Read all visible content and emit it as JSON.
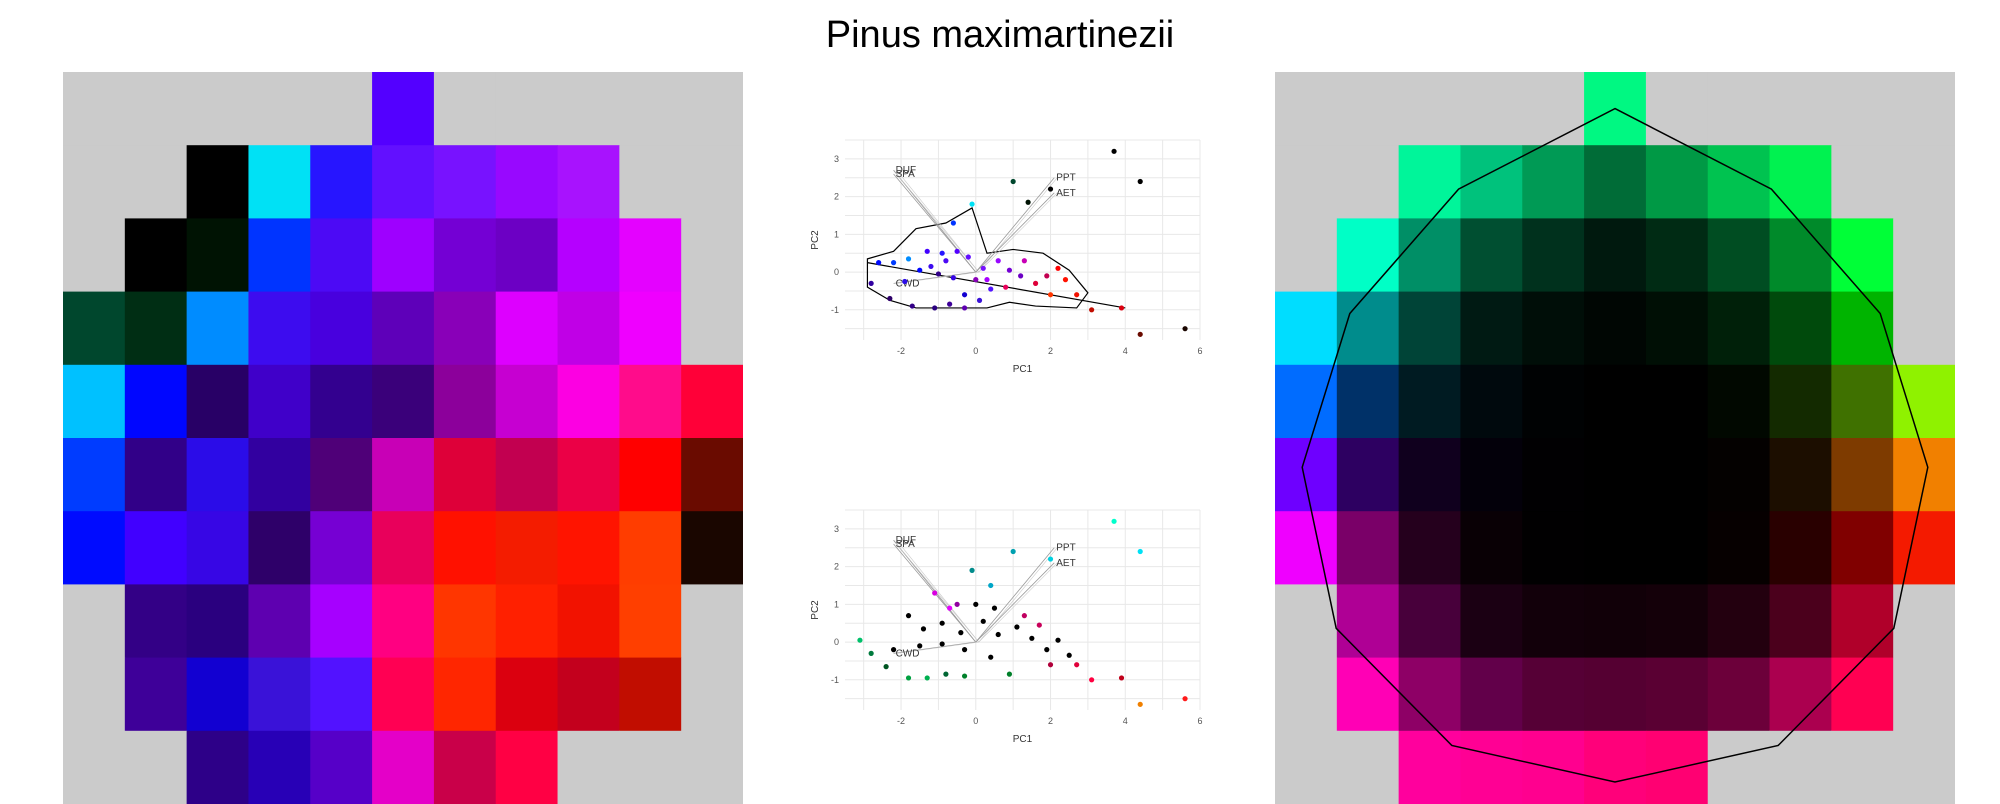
{
  "title": "Pinus maximartinezii",
  "colors": {
    "missing": "#cbcbcb",
    "grid": "#e8e8e8",
    "outline": "#000000"
  },
  "chart_data": [
    {
      "type": "heatmap",
      "panel": "left",
      "rows": [
        [
          null,
          null,
          null,
          null,
          null,
          "#5300ff",
          null,
          null,
          null,
          null,
          null
        ],
        [
          null,
          null,
          "#000000",
          "#00e1f5",
          "#2715ff",
          "#6210ff",
          "#7812ff",
          "#9808ff",
          "#a812fe",
          null,
          null
        ],
        [
          null,
          "#000000",
          "#001303",
          "#0034ff",
          "#4c0af5",
          "#9e00ff",
          "#7400d4",
          "#6c00c4",
          "#b500ff",
          "#e402ff",
          null
        ],
        [
          "#00472d",
          "#002e14",
          "#008cff",
          "#3d0cef",
          "#4800de",
          "#5e00b9",
          "#8900b8",
          "#dd00ff",
          "#c000e6",
          "#ef00ff",
          null
        ],
        [
          "#00c1ff",
          "#0006ff",
          "#280066",
          "#4000c9",
          "#33008f",
          "#3a007a",
          "#8c009b",
          "#c600d1",
          "#fc00e2",
          "#ff0c8b",
          "#ff0038"
        ],
        [
          "#003cff",
          "#310088",
          "#2b0ce8",
          "#3200a0",
          "#4f0078",
          "#c800b6",
          "#de0039",
          "#c20050",
          "#eb0046",
          "#ff0000",
          "#6a0b00"
        ],
        [
          "#000bff",
          "#4100ff",
          "#3706e5",
          "#2e0069",
          "#7600d3",
          "#e8005b",
          "#ff1100",
          "#f41c00",
          "#ff1400",
          "#ff3d00",
          "#1a0600"
        ],
        [
          null,
          "#330086",
          "#2a007f",
          "#5e00b0",
          "#a600ff",
          "#ff0081",
          "#ff3600",
          "#ff2000",
          "#f21200",
          "#ff3f00",
          null
        ],
        [
          null,
          "#3e0099",
          "#1200d1",
          "#3a12d8",
          "#5212ff",
          "#ff0053",
          "#ff2600",
          "#db000f",
          "#c3001d",
          "#c10d00",
          null
        ],
        [
          null,
          null,
          "#2d0088",
          "#2800b6",
          "#5600c8",
          "#e400c8",
          "#c90049",
          "#ff0044",
          null,
          null,
          null
        ]
      ]
    },
    {
      "type": "scatter",
      "panel": "center-top",
      "xlabel": "PC1",
      "ylabel": "PC2",
      "x_ticks": [
        -2,
        0,
        2,
        4,
        6
      ],
      "y_ticks": [
        -1,
        0,
        1,
        2,
        3
      ],
      "xlim": [
        -3.5,
        6
      ],
      "ylim": [
        -1.8,
        3.5
      ],
      "arrows": [
        {
          "label": "DUF",
          "x": -2.2,
          "y": 2.7
        },
        {
          "label": "SPA",
          "x": -2.2,
          "y": 2.6
        },
        {
          "label": "PPT",
          "x": 2.1,
          "y": 2.5
        },
        {
          "label": "AET",
          "x": 2.1,
          "y": 2.1
        },
        {
          "label": "CWD",
          "x": -2.2,
          "y": -0.3
        }
      ],
      "points": [
        {
          "x": 3.7,
          "y": 3.2,
          "c": "#000000"
        },
        {
          "x": 4.4,
          "y": 2.4,
          "c": "#000000"
        },
        {
          "x": 1.0,
          "y": 2.4,
          "c": "#00472d"
        },
        {
          "x": 2.0,
          "y": 2.2,
          "c": "#000000"
        },
        {
          "x": 1.4,
          "y": 1.85,
          "c": "#001303"
        },
        {
          "x": -0.1,
          "y": 1.8,
          "c": "#00e1f5"
        },
        {
          "x": -0.6,
          "y": 1.3,
          "c": "#0034ff"
        },
        {
          "x": -0.9,
          "y": 0.5,
          "c": "#2715ff"
        },
        {
          "x": -2.6,
          "y": 0.25,
          "c": "#000bff"
        },
        {
          "x": -2.2,
          "y": 0.25,
          "c": "#003cff"
        },
        {
          "x": -1.8,
          "y": 0.35,
          "c": "#008cff"
        },
        {
          "x": -1.5,
          "y": 0.05,
          "c": "#0006ff"
        },
        {
          "x": -1.2,
          "y": 0.15,
          "c": "#3d0cef"
        },
        {
          "x": -0.8,
          "y": 0.3,
          "c": "#4c0af5"
        },
        {
          "x": -0.5,
          "y": 0.55,
          "c": "#5300ff"
        },
        {
          "x": -0.2,
          "y": 0.4,
          "c": "#6210ff"
        },
        {
          "x": -1.3,
          "y": 0.55,
          "c": "#4100ff"
        },
        {
          "x": -1.0,
          "y": -0.05,
          "c": "#310088"
        },
        {
          "x": -0.6,
          "y": -0.15,
          "c": "#3706e5"
        },
        {
          "x": -1.9,
          "y": -0.25,
          "c": "#2b0ce8"
        },
        {
          "x": -2.8,
          "y": -0.3,
          "c": "#3200a0"
        },
        {
          "x": -2.3,
          "y": -0.7,
          "c": "#2e0069"
        },
        {
          "x": -1.7,
          "y": -0.9,
          "c": "#330086"
        },
        {
          "x": -1.1,
          "y": -0.95,
          "c": "#2a007f"
        },
        {
          "x": -0.7,
          "y": -0.85,
          "c": "#3e0099"
        },
        {
          "x": -0.3,
          "y": -0.6,
          "c": "#1200d1"
        },
        {
          "x": 0.1,
          "y": -0.75,
          "c": "#3a12d8"
        },
        {
          "x": 0.4,
          "y": -0.45,
          "c": "#5212ff"
        },
        {
          "x": 0.2,
          "y": 0.1,
          "c": "#7812ff"
        },
        {
          "x": 0.6,
          "y": 0.3,
          "c": "#9808ff"
        },
        {
          "x": 0.9,
          "y": 0.05,
          "c": "#7400d4"
        },
        {
          "x": 1.2,
          "y": -0.1,
          "c": "#6c00c4"
        },
        {
          "x": 0.0,
          "y": -0.2,
          "c": "#8900b8"
        },
        {
          "x": -0.3,
          "y": -0.95,
          "c": "#5e00b0"
        },
        {
          "x": 0.3,
          "y": -0.2,
          "c": "#a600ff"
        },
        {
          "x": 0.8,
          "y": -0.4,
          "c": "#e8005b"
        },
        {
          "x": 1.3,
          "y": 0.3,
          "c": "#c800b6"
        },
        {
          "x": 1.6,
          "y": -0.3,
          "c": "#de0039"
        },
        {
          "x": 1.9,
          "y": -0.1,
          "c": "#c20050"
        },
        {
          "x": 2.2,
          "y": 0.1,
          "c": "#ff0000"
        },
        {
          "x": 2.4,
          "y": -0.2,
          "c": "#ff1100"
        },
        {
          "x": 2.0,
          "y": -0.6,
          "c": "#ff3600"
        },
        {
          "x": 2.7,
          "y": -0.6,
          "c": "#f21200"
        },
        {
          "x": 3.1,
          "y": -1.0,
          "c": "#c10d00"
        },
        {
          "x": 3.9,
          "y": -0.95,
          "c": "#db000f"
        },
        {
          "x": 4.4,
          "y": -1.65,
          "c": "#6a0b00"
        },
        {
          "x": 5.6,
          "y": -1.5,
          "c": "#1a0600"
        }
      ],
      "hull": [
        [
          -2.9,
          0.35
        ],
        [
          -2.2,
          0.55
        ],
        [
          -1.6,
          1.15
        ],
        [
          -0.8,
          1.3
        ],
        [
          -0.1,
          1.7
        ],
        [
          0.3,
          0.5
        ],
        [
          1.0,
          0.6
        ],
        [
          1.8,
          0.5
        ],
        [
          2.5,
          0.05
        ],
        [
          3.0,
          -0.55
        ],
        [
          2.7,
          -0.95
        ],
        [
          1.6,
          -0.9
        ],
        [
          0.9,
          -0.8
        ],
        [
          0.3,
          -0.95
        ],
        [
          -0.7,
          -0.95
        ],
        [
          -1.6,
          -0.95
        ],
        [
          -2.3,
          -0.75
        ],
        [
          -2.9,
          -0.4
        ]
      ],
      "trend_line": [
        [
          -2.9,
          0.25
        ],
        [
          4.0,
          -0.95
        ]
      ]
    },
    {
      "type": "scatter",
      "panel": "center-bottom",
      "xlabel": "PC1",
      "ylabel": "PC2",
      "x_ticks": [
        -2,
        0,
        2,
        4,
        6
      ],
      "y_ticks": [
        -1,
        0,
        1,
        2,
        3
      ],
      "xlim": [
        -3.5,
        6
      ],
      "ylim": [
        -1.8,
        3.5
      ],
      "arrows": [
        {
          "label": "DUF",
          "x": -2.2,
          "y": 2.7
        },
        {
          "label": "SPA",
          "x": -2.2,
          "y": 2.6
        },
        {
          "label": "PPT",
          "x": 2.1,
          "y": 2.5
        },
        {
          "label": "AET",
          "x": 2.1,
          "y": 2.1
        },
        {
          "label": "CWD",
          "x": -2.2,
          "y": -0.3
        }
      ],
      "points": [
        {
          "x": 3.7,
          "y": 3.2,
          "c": "#00ffcc"
        },
        {
          "x": 4.4,
          "y": 2.4,
          "c": "#00e1f5"
        },
        {
          "x": 1.0,
          "y": 2.4,
          "c": "#00a0b0"
        },
        {
          "x": 2.0,
          "y": 2.2,
          "c": "#00d0e0"
        },
        {
          "x": -0.1,
          "y": 1.9,
          "c": "#008b8b"
        },
        {
          "x": 0.4,
          "y": 1.5,
          "c": "#00a6c8"
        },
        {
          "x": -1.1,
          "y": 1.3,
          "c": "#d800e0"
        },
        {
          "x": -0.7,
          "y": 0.9,
          "c": "#e402ff"
        },
        {
          "x": -1.8,
          "y": 0.7,
          "c": "#000000"
        },
        {
          "x": -1.4,
          "y": 0.35,
          "c": "#000000"
        },
        {
          "x": -0.9,
          "y": 0.5,
          "c": "#000000"
        },
        {
          "x": -0.4,
          "y": 0.25,
          "c": "#000000"
        },
        {
          "x": 0.2,
          "y": 0.55,
          "c": "#000000"
        },
        {
          "x": 0.6,
          "y": 0.2,
          "c": "#000000"
        },
        {
          "x": 1.1,
          "y": 0.4,
          "c": "#000000"
        },
        {
          "x": 1.5,
          "y": 0.1,
          "c": "#000000"
        },
        {
          "x": 1.9,
          "y": -0.2,
          "c": "#000000"
        },
        {
          "x": 2.2,
          "y": 0.05,
          "c": "#000000"
        },
        {
          "x": 2.5,
          "y": -0.35,
          "c": "#000000"
        },
        {
          "x": -2.2,
          "y": -0.2,
          "c": "#000000"
        },
        {
          "x": -1.5,
          "y": -0.1,
          "c": "#000000"
        },
        {
          "x": -0.9,
          "y": -0.05,
          "c": "#000000"
        },
        {
          "x": -0.3,
          "y": -0.2,
          "c": "#000000"
        },
        {
          "x": 0.4,
          "y": -0.4,
          "c": "#000000"
        },
        {
          "x": -2.8,
          "y": -0.3,
          "c": "#007a3d"
        },
        {
          "x": -3.1,
          "y": 0.05,
          "c": "#00c06a"
        },
        {
          "x": -2.4,
          "y": -0.65,
          "c": "#005522"
        },
        {
          "x": -1.8,
          "y": -0.95,
          "c": "#00a040"
        },
        {
          "x": -1.3,
          "y": -0.95,
          "c": "#00b050"
        },
        {
          "x": -0.8,
          "y": -0.85,
          "c": "#006633"
        },
        {
          "x": -0.3,
          "y": -0.9,
          "c": "#00802a"
        },
        {
          "x": 0.9,
          "y": -0.85,
          "c": "#00802a"
        },
        {
          "x": 1.3,
          "y": 0.7,
          "c": "#c00060"
        },
        {
          "x": 1.7,
          "y": 0.45,
          "c": "#c8005a"
        },
        {
          "x": 2.0,
          "y": -0.6,
          "c": "#b0003a"
        },
        {
          "x": 2.7,
          "y": -0.6,
          "c": "#e0003a"
        },
        {
          "x": 3.1,
          "y": -1.0,
          "c": "#ff0040"
        },
        {
          "x": 3.9,
          "y": -0.95,
          "c": "#c0001a"
        },
        {
          "x": 4.4,
          "y": -1.65,
          "c": "#f08000"
        },
        {
          "x": 5.6,
          "y": -1.5,
          "c": "#ff1a1a"
        },
        {
          "x": 0.0,
          "y": 1.0,
          "c": "#000000"
        },
        {
          "x": 0.5,
          "y": 0.9,
          "c": "#000000"
        },
        {
          "x": -0.5,
          "y": 1.0,
          "c": "#9000a0"
        }
      ]
    },
    {
      "type": "heatmap",
      "panel": "right",
      "rows": [
        [
          null,
          null,
          null,
          null,
          null,
          "#00f882",
          null,
          null,
          null,
          null,
          null
        ],
        [
          null,
          null,
          "#00f59a",
          "#00c27c",
          "#009a55",
          "#006c37",
          "#009945",
          "#00c350",
          "#00f250",
          null,
          null
        ],
        [
          null,
          "#00ffc6",
          "#008f66",
          "#004f31",
          "#00311d",
          "#00190e",
          "#002b14",
          "#004d22",
          "#008a2a",
          "#00ff37",
          null
        ],
        [
          "#00ddff",
          "#008c8c",
          "#004437",
          "#001a13",
          "#000e08",
          "#000603",
          "#000f05",
          "#002009",
          "#004a0c",
          "#00b400",
          null
        ],
        [
          "#006cff",
          "#003168",
          "#001b22",
          "#00090d",
          "#000203",
          "#000000",
          "#000000",
          "#010800",
          "#132a00",
          "#3f7100",
          "#8ff200"
        ],
        [
          "#6e00ff",
          "#2d0061",
          "#10001e",
          "#03000a",
          "#010002",
          "#000000",
          "#000000",
          "#040100",
          "#1c0e00",
          "#7e3b00",
          "#f18000"
        ],
        [
          "#ef00ff",
          "#7a0068",
          "#25001d",
          "#090005",
          "#010001",
          "#000000",
          "#000000",
          "#060000",
          "#290000",
          "#800000",
          "#f41a00"
        ],
        [
          null,
          "#af0095",
          "#48003b",
          "#1b0013",
          "#12000a",
          "#110008",
          "#140009",
          "#23000f",
          "#4b001c",
          "#b0002a",
          null
        ],
        [
          null,
          "#ff00b5",
          "#8e0066",
          "#62004a",
          "#560036",
          "#550032",
          "#5a0033",
          "#6c003a",
          "#ab004f",
          "#ff0052",
          null
        ],
        [
          null,
          null,
          "#ff009d",
          "#ff0094",
          "#ff008f",
          "#ff007a",
          "#ff0072",
          null,
          null,
          null,
          null
        ]
      ],
      "outline": [
        [
          0.5,
          0.05
        ],
        [
          0.73,
          0.16
        ],
        [
          0.89,
          0.33
        ],
        [
          0.96,
          0.54
        ],
        [
          0.91,
          0.76
        ],
        [
          0.74,
          0.92
        ],
        [
          0.5,
          0.97
        ],
        [
          0.26,
          0.92
        ],
        [
          0.09,
          0.76
        ],
        [
          0.04,
          0.54
        ],
        [
          0.11,
          0.33
        ],
        [
          0.27,
          0.16
        ]
      ]
    }
  ]
}
